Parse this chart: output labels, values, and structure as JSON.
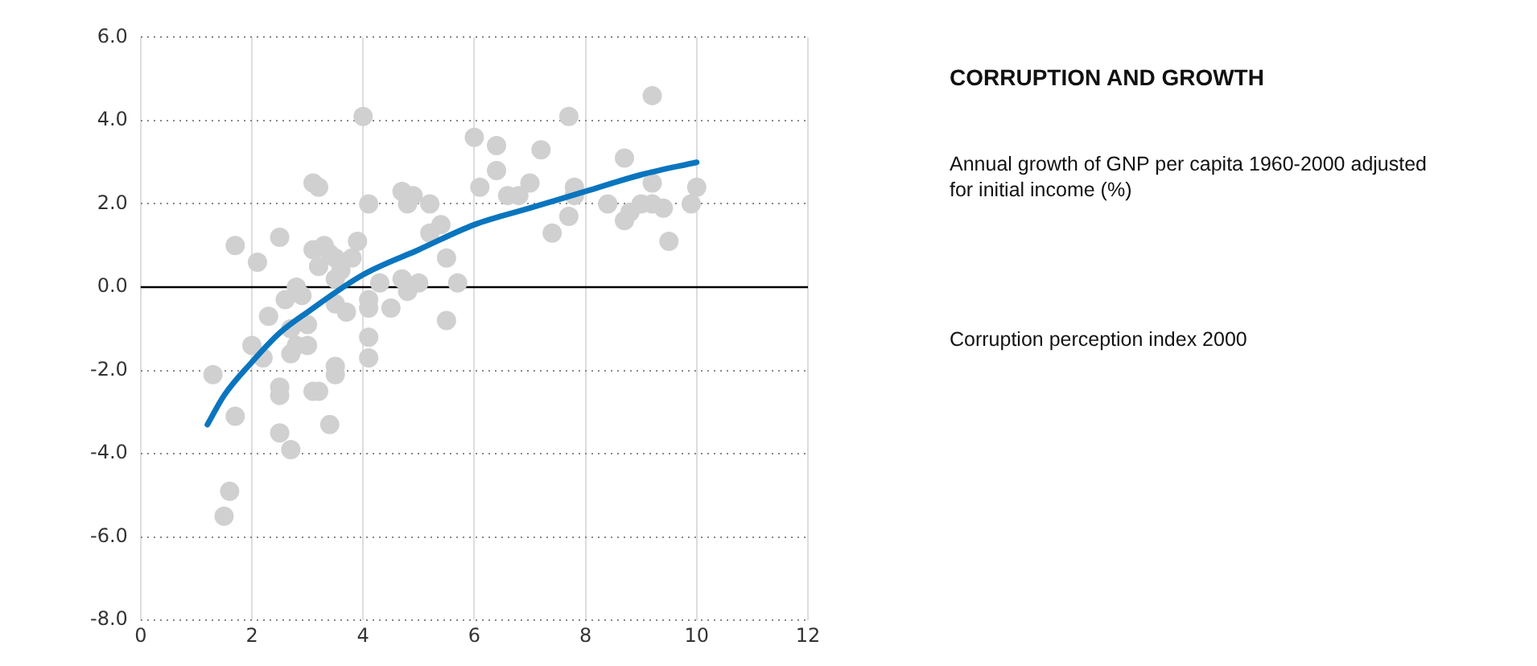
{
  "chart_data": {
    "type": "scatter",
    "title": "CORRUPTION AND GROWTH",
    "annotations": [
      "Annual growth of GNP per capita 1960-2000 adjusted for initial income (%)",
      "Corruption perception index 2000"
    ],
    "xlim": [
      0,
      12
    ],
    "xticks": [
      0,
      2,
      4,
      6,
      8,
      10,
      12
    ],
    "ylim": [
      -8,
      6
    ],
    "yticks": [
      {
        "value": 6,
        "label": "6.0"
      },
      {
        "value": 4,
        "label": "4.0"
      },
      {
        "value": 2,
        "label": "2.0"
      },
      {
        "value": 0,
        "label": "0.0"
      },
      {
        "value": -2,
        "label": "-2.0"
      },
      {
        "value": -4,
        "label": "-4.0"
      },
      {
        "value": -6,
        "label": "-6.0"
      },
      {
        "value": -8,
        "label": "-8.0"
      }
    ],
    "grid": true,
    "ref_lines": [
      {
        "axis": "y",
        "value": 0,
        "color": "#000000"
      }
    ],
    "series": [
      {
        "color": "#d0d0d0",
        "marker": "circle",
        "x": [
          1.3,
          1.7,
          1.7,
          1.6,
          1.5,
          2.1,
          2.0,
          2.2,
          2.3,
          2.5,
          2.5,
          2.5,
          2.5,
          2.7,
          2.6,
          2.8,
          2.9,
          2.7,
          2.8,
          2.7,
          3.0,
          3.0,
          3.1,
          3.2,
          3.1,
          3.2,
          3.1,
          3.3,
          3.2,
          3.4,
          3.5,
          3.6,
          3.5,
          3.5,
          3.5,
          3.5,
          3.4,
          3.7,
          3.8,
          3.9,
          4.0,
          4.1,
          4.1,
          4.1,
          4.1,
          4.1,
          4.3,
          4.5,
          4.7,
          4.7,
          4.8,
          4.8,
          4.9,
          5.0,
          5.2,
          5.2,
          5.4,
          5.5,
          5.5,
          5.7,
          6.0,
          6.1,
          6.4,
          6.4,
          6.6,
          6.8,
          7.0,
          7.2,
          7.4,
          7.7,
          7.7,
          7.8,
          7.8,
          8.4,
          8.7,
          8.7,
          8.8,
          9.0,
          9.2,
          9.2,
          9.2,
          9.4,
          9.5,
          9.9,
          10.0
        ],
        "values": [
          -2.1,
          1.0,
          -3.1,
          -4.9,
          -5.5,
          0.6,
          -1.4,
          -1.7,
          -0.7,
          1.2,
          -2.4,
          -2.6,
          -3.5,
          -3.9,
          -0.3,
          0.0,
          -0.2,
          -1.0,
          -1.4,
          -1.6,
          -0.9,
          -1.4,
          -2.5,
          -2.5,
          2.5,
          2.4,
          0.9,
          1.0,
          0.5,
          0.8,
          0.7,
          0.4,
          0.2,
          -0.4,
          -1.9,
          -2.1,
          -3.3,
          -0.6,
          0.7,
          1.1,
          4.1,
          2.0,
          -0.3,
          -0.5,
          -1.2,
          -1.7,
          0.1,
          -0.5,
          2.3,
          0.2,
          -0.1,
          2.0,
          2.2,
          0.1,
          2.0,
          1.3,
          1.5,
          0.7,
          -0.8,
          0.1,
          3.6,
          2.4,
          3.4,
          2.8,
          2.2,
          2.2,
          2.5,
          3.3,
          1.3,
          1.7,
          4.1,
          2.4,
          2.2,
          2.0,
          3.1,
          1.6,
          1.8,
          2.0,
          4.6,
          2.5,
          2.0,
          1.9,
          1.1,
          2.0,
          2.4
        ]
      },
      {
        "type": "line",
        "color": "#0a75be",
        "marker": "none",
        "x": [
          1.2,
          1.5,
          2,
          2.5,
          3,
          4,
          5,
          6,
          7,
          8,
          9,
          10
        ],
        "values": [
          -3.3,
          -2.6,
          -1.8,
          -1.1,
          -0.6,
          0.3,
          0.9,
          1.5,
          1.9,
          2.3,
          2.7,
          3.0
        ]
      }
    ]
  }
}
